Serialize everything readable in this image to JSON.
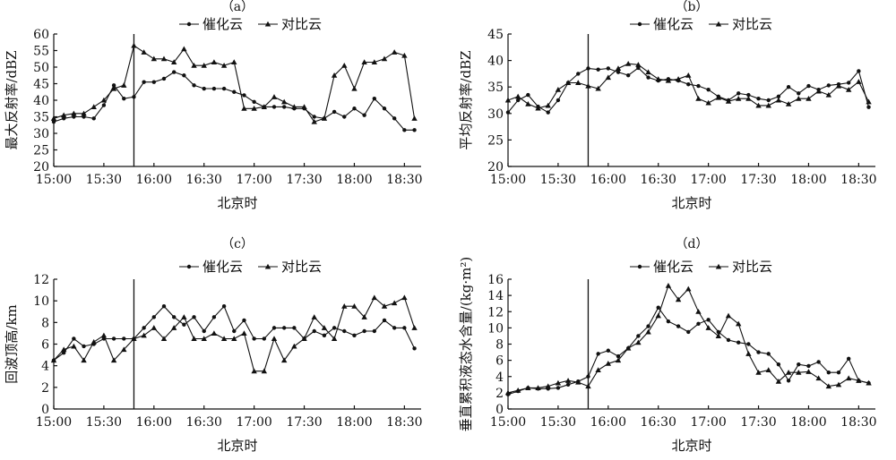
{
  "chart_data": [
    {
      "type": "line",
      "panel_label": "（a）",
      "xlabel": "北京时",
      "ylabel": "最大反射率/dBZ",
      "ylim": [
        20,
        60
      ],
      "yticks": [
        20,
        25,
        30,
        35,
        40,
        45,
        50,
        55,
        60
      ],
      "xticks": [
        "15:00",
        "15:30",
        "16:00",
        "16:30",
        "17:00",
        "17:30",
        "18:00",
        "18:30"
      ],
      "xtick_minutes": [
        0,
        30,
        60,
        90,
        120,
        150,
        180,
        210
      ],
      "xlim_minutes": [
        0,
        220
      ],
      "seeding_time_minutes": 48,
      "legend": [
        "催化云",
        "对比云"
      ],
      "series": [
        {
          "name": "催化云",
          "marker": "circle",
          "x": [
            0,
            6,
            12,
            18,
            24,
            30,
            36,
            42,
            48,
            54,
            60,
            66,
            72,
            78,
            84,
            90,
            96,
            102,
            108,
            114,
            120,
            126,
            132,
            138,
            144,
            150,
            156,
            162,
            168,
            174,
            180,
            186,
            192,
            198,
            204,
            210,
            216
          ],
          "values": [
            33.5,
            34.5,
            35,
            35,
            34.5,
            38.5,
            44.5,
            40.5,
            41,
            45.5,
            45.5,
            46.5,
            48.5,
            47.5,
            44.5,
            43.5,
            43.5,
            43.5,
            42.5,
            41.5,
            39.5,
            38,
            38,
            38,
            37.5,
            37.5,
            35,
            34.5,
            36.5,
            35,
            37.5,
            35.5,
            40.5,
            37.5,
            34.5,
            31,
            31
          ]
        },
        {
          "name": "对比云",
          "marker": "triangle",
          "x": [
            0,
            6,
            12,
            18,
            24,
            30,
            36,
            42,
            48,
            54,
            60,
            66,
            72,
            78,
            84,
            90,
            96,
            102,
            108,
            114,
            120,
            126,
            132,
            138,
            144,
            150,
            156,
            162,
            168,
            174,
            180,
            186,
            192,
            198,
            204,
            210,
            216
          ],
          "values": [
            34.5,
            35.5,
            36,
            36,
            38,
            40,
            43.5,
            44.5,
            56.5,
            54.5,
            52.5,
            52.5,
            51.5,
            55.5,
            50.5,
            50.5,
            51.5,
            50.5,
            51.5,
            37.5,
            37.5,
            38,
            41,
            39.5,
            38,
            38,
            33.5,
            34.5,
            47.5,
            50.5,
            43.5,
            51.5,
            51.5,
            52.5,
            54.5,
            53.5,
            34.5
          ]
        }
      ]
    },
    {
      "type": "line",
      "panel_label": "（b）",
      "xlabel": "北京时",
      "ylabel": "平均反射率/dBZ",
      "ylim": [
        20,
        45
      ],
      "yticks": [
        20,
        25,
        30,
        35,
        40,
        45
      ],
      "xticks": [
        "15:00",
        "15:30",
        "16:00",
        "16:30",
        "17:00",
        "17:30",
        "18:00",
        "18:30"
      ],
      "xtick_minutes": [
        0,
        30,
        60,
        90,
        120,
        150,
        180,
        210
      ],
      "xlim_minutes": [
        0,
        220
      ],
      "seeding_time_minutes": 48,
      "legend": [
        "催化云",
        "对比云"
      ],
      "series": [
        {
          "name": "催化云",
          "marker": "circle",
          "x": [
            0,
            6,
            12,
            18,
            24,
            30,
            36,
            42,
            48,
            54,
            60,
            66,
            72,
            78,
            84,
            90,
            96,
            102,
            108,
            114,
            120,
            126,
            132,
            138,
            144,
            150,
            156,
            162,
            168,
            174,
            180,
            186,
            192,
            198,
            204,
            210,
            216
          ],
          "values": [
            30.2,
            32.5,
            33.5,
            31.3,
            30.2,
            32.5,
            35.8,
            37.5,
            38.5,
            38.3,
            38.5,
            37.8,
            37.2,
            38.6,
            36.8,
            36.2,
            36.5,
            36.2,
            35.5,
            35.2,
            34.5,
            33.2,
            32.5,
            33.8,
            33.5,
            32.8,
            32.5,
            33.2,
            35,
            33.8,
            35.2,
            34.5,
            35.3,
            35.5,
            35.8,
            38,
            31.2
          ]
        },
        {
          "name": "对比云",
          "marker": "triangle",
          "x": [
            0,
            6,
            12,
            18,
            24,
            30,
            36,
            42,
            48,
            54,
            60,
            66,
            72,
            78,
            84,
            90,
            96,
            102,
            108,
            114,
            120,
            126,
            132,
            138,
            144,
            150,
            156,
            162,
            168,
            174,
            180,
            186,
            192,
            198,
            204,
            210,
            216
          ],
          "values": [
            32.5,
            33.2,
            31.8,
            31,
            31.5,
            34.5,
            35.8,
            35.8,
            35.2,
            34.7,
            36.8,
            38.5,
            39.4,
            39.2,
            37.8,
            36.5,
            36.2,
            36.5,
            37.2,
            32.8,
            32,
            33,
            32.3,
            32.8,
            32.8,
            31.5,
            31.5,
            32.5,
            31.8,
            32.8,
            32.8,
            34.2,
            33.5,
            35.2,
            34.5,
            36,
            32.2
          ]
        }
      ]
    },
    {
      "type": "line",
      "panel_label": "（c）",
      "xlabel": "北京时",
      "ylabel": "回波顶高/km",
      "ylim": [
        0,
        12
      ],
      "yticks": [
        0,
        2,
        4,
        6,
        8,
        10,
        12
      ],
      "xticks": [
        "15:00",
        "15:30",
        "16:00",
        "16:30",
        "17:00",
        "17:30",
        "18:00",
        "18:30"
      ],
      "xtick_minutes": [
        0,
        30,
        60,
        90,
        120,
        150,
        180,
        210
      ],
      "xlim_minutes": [
        0,
        220
      ],
      "seeding_time_minutes": 48,
      "legend": [
        "催化云",
        "对比云"
      ],
      "series": [
        {
          "name": "催化云",
          "marker": "circle",
          "x": [
            0,
            6,
            12,
            18,
            24,
            30,
            36,
            42,
            48,
            54,
            60,
            66,
            72,
            78,
            84,
            90,
            96,
            102,
            108,
            114,
            120,
            126,
            132,
            138,
            144,
            150,
            156,
            162,
            168,
            174,
            180,
            186,
            192,
            198,
            204,
            210,
            216
          ],
          "values": [
            4.5,
            5.2,
            6.5,
            5.8,
            6,
            6.5,
            6.5,
            6.5,
            6.5,
            7.5,
            8.5,
            9.5,
            8.5,
            7.8,
            8.5,
            7.2,
            8.5,
            9.5,
            7.2,
            8.2,
            6.5,
            6.5,
            7.5,
            7.5,
            7.5,
            6.5,
            7.2,
            6.8,
            7.5,
            7.2,
            6.8,
            7.2,
            7.2,
            8.2,
            7.5,
            7.5,
            5.6
          ]
        },
        {
          "name": "对比云",
          "marker": "triangle",
          "x": [
            0,
            6,
            12,
            18,
            24,
            30,
            36,
            42,
            48,
            54,
            60,
            66,
            72,
            78,
            84,
            90,
            96,
            102,
            108,
            114,
            120,
            126,
            132,
            138,
            144,
            150,
            156,
            162,
            168,
            174,
            180,
            186,
            192,
            198,
            204,
            210,
            216
          ],
          "values": [
            4.5,
            5.5,
            5.8,
            4.5,
            6.2,
            6.8,
            4.5,
            5.5,
            6.5,
            6.8,
            7.5,
            6.5,
            7.5,
            8.5,
            6.5,
            6.5,
            7,
            6.5,
            6.5,
            7,
            3.5,
            3.5,
            6.5,
            4.5,
            5.8,
            6.5,
            8.5,
            7.5,
            6.5,
            9.5,
            9.5,
            8.5,
            10.3,
            9.5,
            9.8,
            10.3,
            7.5
          ]
        }
      ]
    },
    {
      "type": "line",
      "panel_label": "（d）",
      "xlabel": "北京时",
      "ylabel": "垂直累积液态水含量/(kg·m²)",
      "ylim": [
        0,
        16
      ],
      "yticks": [
        0,
        2,
        4,
        6,
        8,
        10,
        12,
        14,
        16
      ],
      "xticks": [
        "15:00",
        "15:30",
        "16:00",
        "16:30",
        "17:00",
        "17:30",
        "18:00",
        "18:30"
      ],
      "xtick_minutes": [
        0,
        30,
        60,
        90,
        120,
        150,
        180,
        210
      ],
      "xlim_minutes": [
        0,
        220
      ],
      "seeding_time_minutes": 48,
      "legend": [
        "催化云",
        "对比云"
      ],
      "series": [
        {
          "name": "催化云",
          "marker": "circle",
          "x": [
            0,
            6,
            12,
            18,
            24,
            30,
            36,
            42,
            48,
            54,
            60,
            66,
            72,
            78,
            84,
            90,
            96,
            102,
            108,
            114,
            120,
            126,
            132,
            138,
            144,
            150,
            156,
            162,
            168,
            174,
            180,
            186,
            192,
            198,
            204,
            210,
            216
          ],
          "values": [
            1.8,
            2.2,
            2.6,
            2.5,
            2.5,
            2.6,
            3,
            3.4,
            4,
            6.8,
            7.2,
            6.5,
            7.5,
            9,
            10.2,
            12.5,
            10.8,
            10.2,
            9.5,
            10.5,
            11,
            9.5,
            8.5,
            8.2,
            8,
            7,
            6.8,
            5.5,
            3.5,
            5.5,
            5.3,
            5.8,
            4.5,
            4.5,
            6.2,
            3.5,
            3.2
          ]
        },
        {
          "name": "对比云",
          "marker": "triangle",
          "x": [
            0,
            6,
            12,
            18,
            24,
            30,
            36,
            42,
            48,
            54,
            60,
            66,
            72,
            78,
            84,
            90,
            96,
            102,
            108,
            114,
            120,
            126,
            132,
            138,
            144,
            150,
            156,
            162,
            168,
            174,
            180,
            186,
            192,
            198,
            204,
            210,
            216
          ],
          "values": [
            2,
            2.3,
            2.6,
            2.6,
            2.8,
            3.2,
            3.5,
            3.3,
            2.8,
            4.8,
            5.6,
            6,
            7.5,
            8.2,
            9.5,
            11.5,
            15.2,
            13.5,
            14.8,
            12,
            10,
            9,
            11.5,
            10.5,
            6.8,
            4.5,
            4.8,
            3.4,
            4.5,
            4.5,
            4.6,
            3.8,
            2.8,
            3,
            3.8,
            3.5,
            3.2
          ]
        }
      ]
    }
  ]
}
